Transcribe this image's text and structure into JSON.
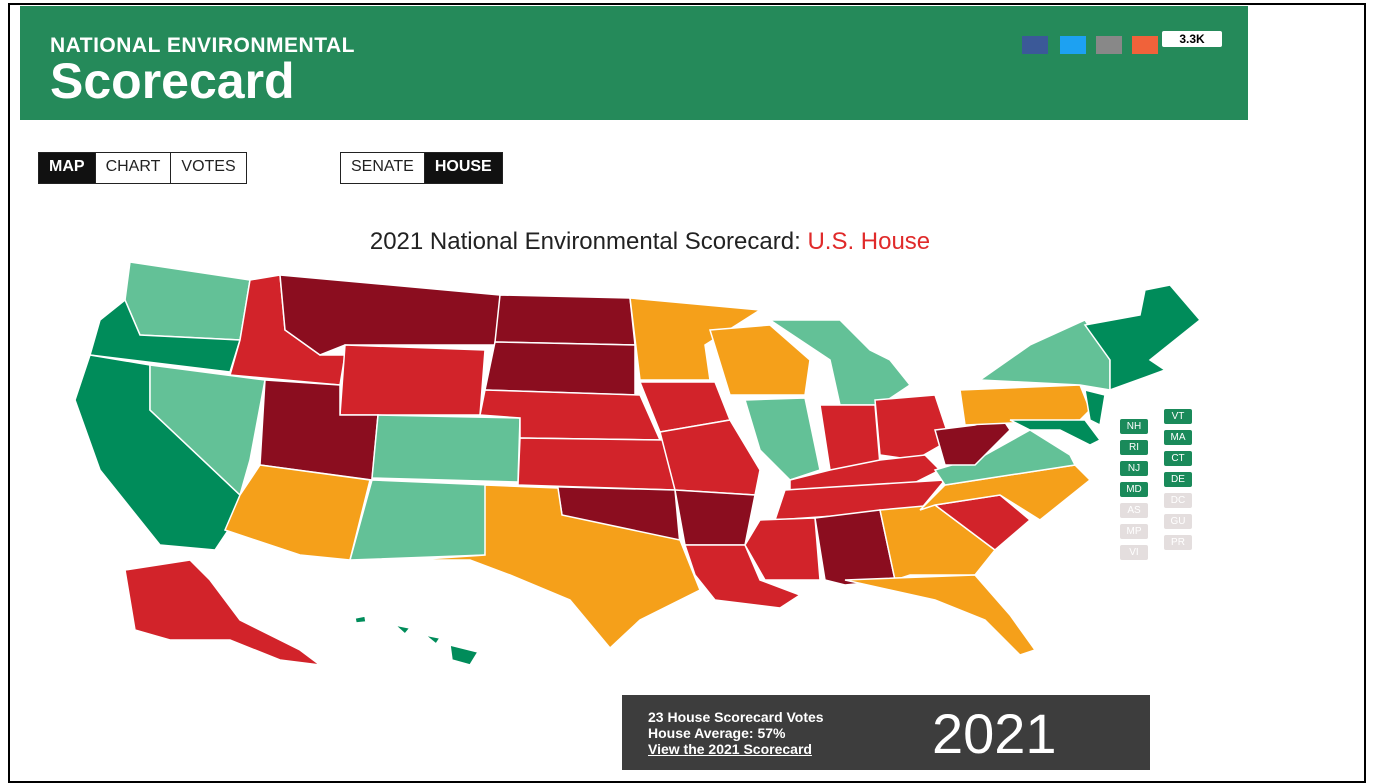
{
  "header": {
    "title_small": "NATIONAL ENVIRONMENTAL",
    "title_large": "Scorecard"
  },
  "share": {
    "count": "3.3K"
  },
  "tabs": {
    "view": [
      "MAP",
      "CHART",
      "VOTES"
    ],
    "chamber": [
      "SENATE",
      "HOUSE"
    ]
  },
  "map": {
    "title": "2021 National Environmental Scorecard:",
    "title_highlight": "U.S. House",
    "state_buttons_left": [
      "NH",
      "RI",
      "NJ",
      "MD",
      "AS",
      "MP",
      "VI"
    ],
    "state_buttons_right": [
      "VT",
      "MA",
      "CT",
      "DE",
      "DC",
      "GU",
      "PR"
    ]
  },
  "info": {
    "votes": "23 House Scorecard Votes",
    "average": "House Average: 57%",
    "link": "View the 2021 Scorecard",
    "year": "2021"
  }
}
